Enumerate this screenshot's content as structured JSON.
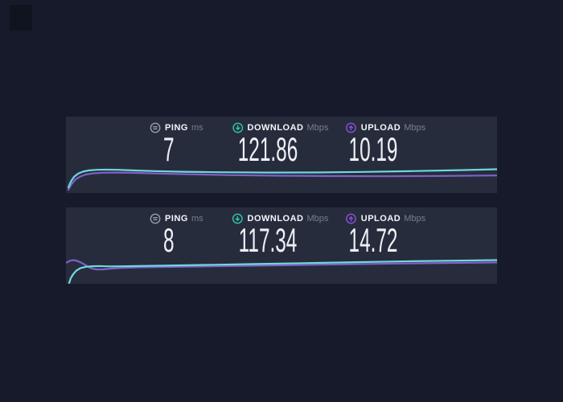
{
  "colors": {
    "page-bg": "#161a2b",
    "panel-bg": "#272c3d",
    "corner-artifact": "#10141e",
    "label-text": "#f4f6fa",
    "unit-text": "#767d92",
    "value-text": "#eef0f5",
    "ping-icon": "#959bae",
    "download-accent": "#2fc6a7",
    "upload-accent": "#8b4fd6",
    "download-line": "#6ed8dc",
    "upload-line": "#7e61c6"
  },
  "panels": [
    {
      "ping": {
        "label": "PING",
        "unit": "ms",
        "value": "7"
      },
      "download": {
        "label": "DOWNLOAD",
        "unit": "Mbps",
        "value": "121.86"
      },
      "upload": {
        "label": "UPLOAD",
        "unit": "Mbps",
        "value": "10.19"
      },
      "sparkline": {
        "type": "line",
        "legend": [
          "download",
          "upload"
        ],
        "download_curve": [
          [
            3,
            88
          ],
          [
            6,
            81
          ],
          [
            10,
            75
          ],
          [
            15,
            71
          ],
          [
            21,
            68.5
          ],
          [
            28,
            67
          ],
          [
            38,
            66.2
          ],
          [
            50,
            66
          ],
          [
            65,
            66.2
          ],
          [
            85,
            67
          ],
          [
            110,
            67.8
          ],
          [
            145,
            68.6
          ],
          [
            190,
            69.2
          ],
          [
            250,
            69.6
          ],
          [
            310,
            69.5
          ],
          [
            370,
            68.8
          ],
          [
            430,
            67.8
          ],
          [
            490,
            66.6
          ],
          [
            536,
            65.5
          ]
        ],
        "upload_curve": [
          [
            3,
            91
          ],
          [
            7,
            84
          ],
          [
            12,
            78
          ],
          [
            18,
            74.5
          ],
          [
            25,
            72
          ],
          [
            34,
            70.6
          ],
          [
            46,
            69.8
          ],
          [
            62,
            69.6
          ],
          [
            85,
            70
          ],
          [
            115,
            70.8
          ],
          [
            155,
            71.8
          ],
          [
            205,
            72.8
          ],
          [
            265,
            73.5
          ],
          [
            330,
            74
          ],
          [
            400,
            74.2
          ],
          [
            470,
            73.8
          ],
          [
            536,
            73.2
          ]
        ]
      }
    },
    {
      "ping": {
        "label": "PING",
        "unit": "ms",
        "value": "8"
      },
      "download": {
        "label": "DOWNLOAD",
        "unit": "Mbps",
        "value": "117.34"
      },
      "upload": {
        "label": "UPLOAD",
        "unit": "Mbps",
        "value": "14.72"
      },
      "sparkline": {
        "type": "line",
        "legend": [
          "download",
          "upload"
        ],
        "download_curve": [
          [
            4,
            94
          ],
          [
            6,
            88
          ],
          [
            9,
            83
          ],
          [
            13,
            78.5
          ],
          [
            18,
            75.5
          ],
          [
            25,
            73.8
          ],
          [
            33,
            73.1
          ],
          [
            43,
            73
          ],
          [
            55,
            73.3
          ],
          [
            70,
            73.2
          ],
          [
            90,
            72.9
          ],
          [
            115,
            72.5
          ],
          [
            145,
            72
          ],
          [
            185,
            71.3
          ],
          [
            235,
            70.4
          ],
          [
            295,
            69.3
          ],
          [
            360,
            68.1
          ],
          [
            430,
            66.9
          ],
          [
            490,
            66.1
          ],
          [
            536,
            65.5
          ]
        ],
        "upload_curve": [
          [
            1,
            68.5
          ],
          [
            5,
            66.3
          ],
          [
            9,
            65.6
          ],
          [
            13,
            66.2
          ],
          [
            18,
            68.2
          ],
          [
            23,
            71
          ],
          [
            28,
            74
          ],
          [
            33,
            76.2
          ],
          [
            39,
            77.2
          ],
          [
            46,
            77
          ],
          [
            56,
            76
          ],
          [
            70,
            75.1
          ],
          [
            90,
            74.5
          ],
          [
            120,
            74
          ],
          [
            160,
            73.5
          ],
          [
            210,
            72.8
          ],
          [
            270,
            71.9
          ],
          [
            340,
            70.8
          ],
          [
            410,
            69.8
          ],
          [
            480,
            69
          ],
          [
            536,
            68.4
          ]
        ]
      }
    }
  ]
}
